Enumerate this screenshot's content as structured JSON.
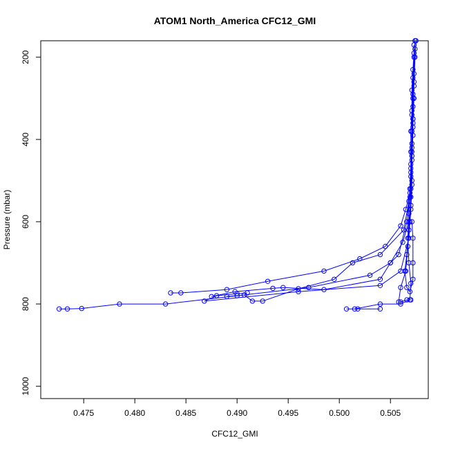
{
  "chart_data": {
    "type": "scatter",
    "title": "ATOM1 North_America CFC12_GMI",
    "xlabel": "CFC12_GMI",
    "ylabel": "Pressure (mbar)",
    "xlim": [
      0.4708,
      0.5087
    ],
    "ylim": [
      1030,
      160
    ],
    "y_inverted": true,
    "x_ticks": [
      "0.475",
      "0.480",
      "0.485",
      "0.490",
      "0.495",
      "0.500",
      "0.505"
    ],
    "x_tick_values": [
      0.475,
      0.48,
      0.485,
      0.49,
      0.495,
      0.5,
      0.505
    ],
    "y_ticks": [
      "200",
      "400",
      "600",
      "800",
      "1000"
    ],
    "y_tick_values": [
      200,
      400,
      600,
      800,
      1000
    ],
    "marker": "open-circle",
    "connected": true,
    "color": "#0000ff",
    "series": [
      {
        "values": [
          [
            0.5074,
            160
          ],
          [
            0.5073,
            190
          ],
          [
            0.5072,
            230
          ],
          [
            0.5071,
            280
          ],
          [
            0.5071,
            330
          ],
          [
            0.507,
            380
          ],
          [
            0.507,
            430
          ],
          [
            0.507,
            480
          ],
          [
            0.5069,
            530
          ],
          [
            0.5065,
            570
          ],
          [
            0.506,
            610
          ],
          [
            0.5045,
            660
          ],
          [
            0.502,
            690
          ],
          [
            0.4985,
            720
          ],
          [
            0.493,
            745
          ],
          [
            0.489,
            765
          ],
          [
            0.4845,
            773
          ],
          [
            0.4835,
            773
          ]
        ]
      },
      {
        "values": [
          [
            0.5075,
            160
          ],
          [
            0.5074,
            200
          ],
          [
            0.5073,
            260
          ],
          [
            0.5072,
            320
          ],
          [
            0.5072,
            390
          ],
          [
            0.5071,
            450
          ],
          [
            0.5071,
            510
          ],
          [
            0.507,
            560
          ],
          [
            0.5068,
            600
          ],
          [
            0.5062,
            650
          ],
          [
            0.505,
            700
          ],
          [
            0.503,
            730
          ],
          [
            0.497,
            760
          ],
          [
            0.49,
            780
          ],
          [
            0.483,
            800
          ],
          [
            0.4785,
            800
          ],
          [
            0.4748,
            811
          ],
          [
            0.4734,
            812
          ],
          [
            0.4726,
            812
          ]
        ]
      },
      {
        "values": [
          [
            0.5073,
            170
          ],
          [
            0.5073,
            240
          ],
          [
            0.5072,
            300
          ],
          [
            0.5072,
            370
          ],
          [
            0.5071,
            440
          ],
          [
            0.5071,
            500
          ],
          [
            0.507,
            570
          ],
          [
            0.5068,
            640
          ],
          [
            0.506,
            720
          ],
          [
            0.504,
            755
          ],
          [
            0.496,
            770
          ],
          [
            0.4868,
            793
          ],
          [
            0.488,
            780
          ],
          [
            0.49,
            775
          ],
          [
            0.491,
            773
          ]
        ]
      },
      {
        "values": [
          [
            0.5074,
            180
          ],
          [
            0.5073,
            270
          ],
          [
            0.5072,
            350
          ],
          [
            0.5071,
            420
          ],
          [
            0.507,
            490
          ],
          [
            0.5068,
            550
          ],
          [
            0.5063,
            620
          ],
          [
            0.504,
            680
          ],
          [
            0.5013,
            700
          ],
          [
            0.4995,
            740
          ],
          [
            0.496,
            763
          ],
          [
            0.4925,
            793
          ],
          [
            0.4915,
            793
          ],
          [
            0.4907,
            778
          ],
          [
            0.489,
            782
          ]
        ]
      },
      {
        "values": [
          [
            0.5073,
            200
          ],
          [
            0.5072,
            290
          ],
          [
            0.5071,
            380
          ],
          [
            0.507,
            470
          ],
          [
            0.5069,
            540
          ],
          [
            0.5066,
            600
          ],
          [
            0.5058,
            680
          ],
          [
            0.505,
            700
          ],
          [
            0.504,
            740
          ],
          [
            0.4985,
            765
          ],
          [
            0.4945,
            760
          ],
          [
            0.4935,
            762
          ],
          [
            0.4898,
            770
          ],
          [
            0.4875,
            782
          ]
        ]
      },
      {
        "values": [
          [
            0.5072,
            250
          ],
          [
            0.5071,
            340
          ],
          [
            0.5071,
            410
          ],
          [
            0.507,
            460
          ],
          [
            0.5069,
            520
          ],
          [
            0.5068,
            580
          ],
          [
            0.5067,
            640
          ],
          [
            0.5068,
            700
          ],
          [
            0.507,
            750
          ],
          [
            0.5069,
            790
          ],
          [
            0.506,
            800
          ],
          [
            0.504,
            800
          ],
          [
            0.5015,
            812
          ],
          [
            0.5007,
            812
          ],
          [
            0.5018,
            812
          ],
          [
            0.504,
            812
          ]
        ]
      },
      {
        "values": [
          [
            0.5073,
            300
          ],
          [
            0.5072,
            360
          ],
          [
            0.5071,
            430
          ],
          [
            0.507,
            520
          ],
          [
            0.5069,
            600
          ],
          [
            0.5067,
            660
          ],
          [
            0.5065,
            720
          ],
          [
            0.506,
            760
          ],
          [
            0.5058,
            795
          ],
          [
            0.506,
            795
          ],
          [
            0.5066,
            790
          ],
          [
            0.507,
            790
          ]
        ]
      },
      {
        "values": [
          [
            0.5072,
            350
          ],
          [
            0.5071,
            440
          ],
          [
            0.507,
            540
          ],
          [
            0.5068,
            620
          ],
          [
            0.5066,
            680
          ],
          [
            0.5064,
            720
          ],
          [
            0.5066,
            760
          ],
          [
            0.5069,
            770
          ],
          [
            0.5072,
            740
          ],
          [
            0.5072,
            700
          ],
          [
            0.5072,
            640
          ],
          [
            0.5071,
            600
          ]
        ]
      }
    ]
  }
}
